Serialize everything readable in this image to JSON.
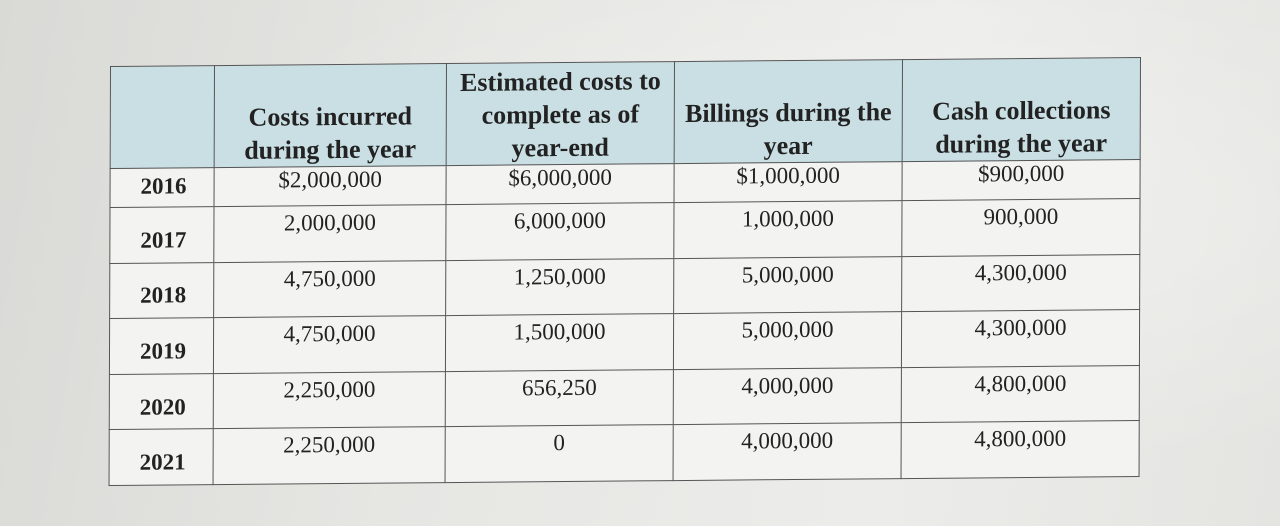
{
  "table": {
    "headers": [
      "",
      "Costs incurred during the year",
      "Estimated costs to complete as of year-end",
      "Billings during the year",
      "Cash collections during the year"
    ],
    "rows": [
      {
        "year": "2016",
        "costs": "$2,000,000",
        "estimated": "$6,000,000",
        "billings": "$1,000,000",
        "collections": "$900,000"
      },
      {
        "year": "2017",
        "costs": "2,000,000",
        "estimated": "6,000,000",
        "billings": "1,000,000",
        "collections": "900,000"
      },
      {
        "year": "2018",
        "costs": "4,750,000",
        "estimated": "1,250,000",
        "billings": "5,000,000",
        "collections": "4,300,000"
      },
      {
        "year": "2019",
        "costs": "4,750,000",
        "estimated": "1,500,000",
        "billings": "5,000,000",
        "collections": "4,300,000"
      },
      {
        "year": "2020",
        "costs": "2,250,000",
        "estimated": "656,250",
        "billings": "4,000,000",
        "collections": "4,800,000"
      },
      {
        "year": "2021",
        "costs": "2,250,000",
        "estimated": "0",
        "billings": "4,000,000",
        "collections": "4,800,000"
      }
    ]
  },
  "colors": {
    "header_bg": "#c9dfe4",
    "cell_bg": "#f3f3f1",
    "border": "#555555"
  }
}
